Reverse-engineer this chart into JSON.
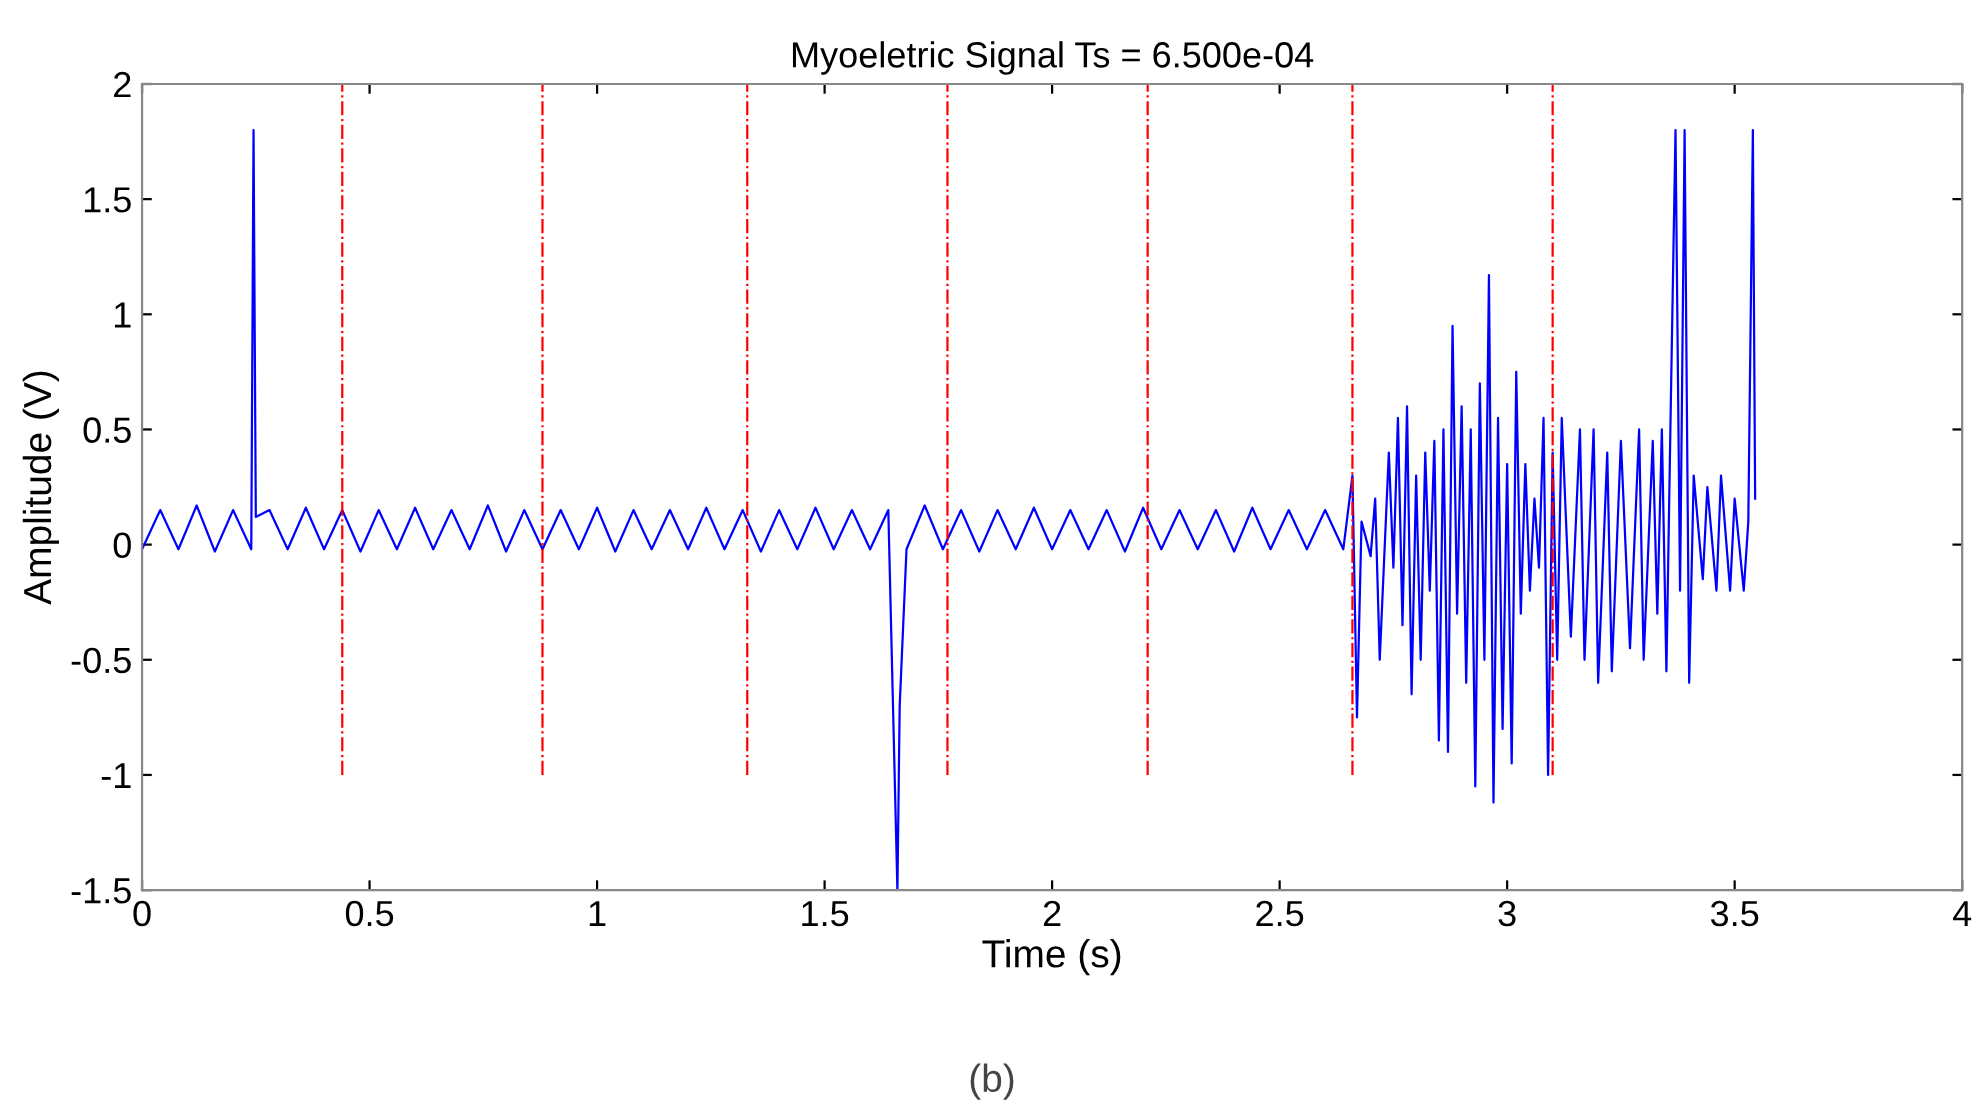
{
  "chart_data": {
    "type": "line",
    "title": "Myoeletric Signal Ts = 6.500e-04",
    "xlabel": "Time (s)",
    "ylabel": "Amplitude (V)",
    "annotations": [
      "(b)"
    ],
    "xlim": [
      0,
      4
    ],
    "ylim": [
      -1.5,
      2
    ],
    "xticks": [
      0,
      0.5,
      1,
      1.5,
      2,
      2.5,
      3,
      3.5,
      4
    ],
    "yticks": [
      -1.5,
      -1,
      -0.5,
      0,
      0.5,
      1,
      1.5,
      2
    ],
    "grid": false,
    "marker": "none",
    "series": [
      {
        "color": "#0000ff",
        "line_style": "solid",
        "x": [
          0.0,
          0.04,
          0.08,
          0.12,
          0.16,
          0.2,
          0.24,
          0.245,
          0.25,
          0.28,
          0.32,
          0.36,
          0.4,
          0.44,
          0.48,
          0.52,
          0.56,
          0.6,
          0.64,
          0.68,
          0.72,
          0.76,
          0.8,
          0.84,
          0.88,
          0.92,
          0.96,
          1.0,
          1.04,
          1.08,
          1.12,
          1.16,
          1.2,
          1.24,
          1.28,
          1.32,
          1.36,
          1.4,
          1.44,
          1.48,
          1.52,
          1.56,
          1.6,
          1.64,
          1.66,
          1.665,
          1.68,
          1.72,
          1.76,
          1.8,
          1.84,
          1.88,
          1.92,
          1.96,
          2.0,
          2.04,
          2.08,
          2.12,
          2.16,
          2.2,
          2.24,
          2.28,
          2.32,
          2.36,
          2.4,
          2.44,
          2.48,
          2.52,
          2.56,
          2.6,
          2.64,
          2.66,
          2.67,
          2.68,
          2.7,
          2.71,
          2.72,
          2.74,
          2.75,
          2.76,
          2.77,
          2.78,
          2.79,
          2.8,
          2.81,
          2.82,
          2.83,
          2.84,
          2.85,
          2.86,
          2.87,
          2.88,
          2.89,
          2.9,
          2.91,
          2.92,
          2.93,
          2.94,
          2.95,
          2.96,
          2.97,
          2.98,
          2.99,
          3.0,
          3.01,
          3.02,
          3.03,
          3.04,
          3.05,
          3.06,
          3.07,
          3.08,
          3.09,
          3.1,
          3.11,
          3.12,
          3.14,
          3.16,
          3.17,
          3.19,
          3.2,
          3.22,
          3.23,
          3.25,
          3.27,
          3.29,
          3.3,
          3.32,
          3.33,
          3.34,
          3.35,
          3.36,
          3.37,
          3.38,
          3.39,
          3.4,
          3.41,
          3.43,
          3.44,
          3.46,
          3.47,
          3.49,
          3.5,
          3.52,
          3.53,
          3.54,
          3.545
        ],
        "values": [
          -0.02,
          0.15,
          -0.02,
          0.17,
          -0.03,
          0.15,
          -0.02,
          1.8,
          0.12,
          0.15,
          -0.02,
          0.16,
          -0.02,
          0.15,
          -0.03,
          0.15,
          -0.02,
          0.16,
          -0.02,
          0.15,
          -0.02,
          0.17,
          -0.03,
          0.15,
          -0.02,
          0.15,
          -0.02,
          0.16,
          -0.03,
          0.15,
          -0.02,
          0.15,
          -0.02,
          0.16,
          -0.02,
          0.15,
          -0.03,
          0.15,
          -0.02,
          0.16,
          -0.02,
          0.15,
          -0.02,
          0.15,
          -1.5,
          -0.7,
          -0.02,
          0.17,
          -0.02,
          0.15,
          -0.03,
          0.15,
          -0.02,
          0.16,
          -0.02,
          0.15,
          -0.02,
          0.15,
          -0.03,
          0.16,
          -0.02,
          0.15,
          -0.02,
          0.15,
          -0.03,
          0.16,
          -0.02,
          0.15,
          -0.02,
          0.15,
          -0.02,
          0.3,
          -0.75,
          0.1,
          -0.05,
          0.2,
          -0.5,
          0.4,
          -0.1,
          0.55,
          -0.35,
          0.6,
          -0.65,
          0.3,
          -0.5,
          0.4,
          -0.2,
          0.45,
          -0.85,
          0.5,
          -0.9,
          0.95,
          -0.3,
          0.6,
          -0.6,
          0.5,
          -1.05,
          0.7,
          -0.5,
          1.17,
          -1.12,
          0.55,
          -0.8,
          0.35,
          -0.95,
          0.75,
          -0.3,
          0.35,
          -0.2,
          0.2,
          -0.1,
          0.55,
          -1.0,
          0.4,
          -0.5,
          0.55,
          -0.4,
          0.5,
          -0.5,
          0.5,
          -0.6,
          0.4,
          -0.55,
          0.45,
          -0.45,
          0.5,
          -0.5,
          0.45,
          -0.3,
          0.5,
          -0.55,
          0.65,
          1.8,
          -0.2,
          1.8,
          -0.6,
          0.3,
          -0.15,
          0.25,
          -0.2,
          0.3,
          -0.2,
          0.2,
          -0.2,
          0.1,
          1.8,
          0.2
        ]
      },
      {
        "color": "#ff0000",
        "line_style": "dashdot",
        "x": [
          0.44,
          0.44
        ],
        "values": [
          -1,
          2
        ]
      },
      {
        "color": "#ff0000",
        "line_style": "dashdot",
        "x": [
          0.88,
          0.88
        ],
        "values": [
          -1,
          2
        ]
      },
      {
        "color": "#ff0000",
        "line_style": "dashdot",
        "x": [
          1.33,
          1.33
        ],
        "values": [
          -1,
          2
        ]
      },
      {
        "color": "#ff0000",
        "line_style": "dashdot",
        "x": [
          1.77,
          1.77
        ],
        "values": [
          -1,
          2
        ]
      },
      {
        "color": "#ff0000",
        "line_style": "dashdot",
        "x": [
          2.21,
          2.21
        ],
        "values": [
          -1,
          2
        ]
      },
      {
        "color": "#ff0000",
        "line_style": "dashdot",
        "x": [
          2.66,
          2.66
        ],
        "values": [
          -1,
          2
        ]
      },
      {
        "color": "#ff0000",
        "line_style": "dashdot",
        "x": [
          3.1,
          3.1
        ],
        "values": [
          -1,
          2
        ]
      }
    ]
  }
}
